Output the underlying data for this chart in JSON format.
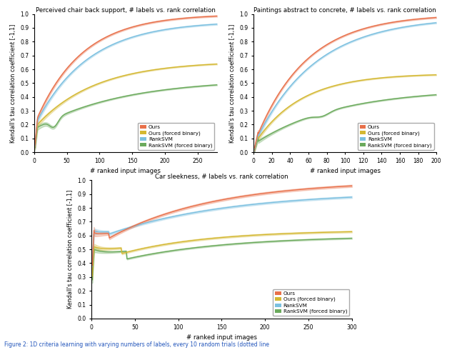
{
  "colors": {
    "ours": "#E8704A",
    "ours_binary": "#D4B832",
    "ranksvm": "#7BC0E0",
    "ranksvm_binary": "#6BAA5C"
  },
  "legend_labels": [
    "Ours",
    "Ours (forced binary)",
    "RankSVM",
    "RankSVM (forced binary)"
  ],
  "caption": "Figure 2: 1D criteria learning with varying numbers of labels, every 10 random trials (dotted line",
  "figure_bgcolor": "#ffffff",
  "plot1": {
    "title": "Perceived chair back support, # labels vs. rank correlation",
    "xlabel": "# ranked input images",
    "ylabel": "Kendall's tau correlation coefficient [-1,1]",
    "xlim": [
      0,
      280
    ],
    "ylim": [
      0,
      1.0
    ],
    "xticks": [
      0,
      50,
      100,
      150,
      200,
      250
    ],
    "yticks": [
      0.0,
      0.1,
      0.2,
      0.3,
      0.4,
      0.5,
      0.6,
      0.7,
      0.8,
      0.9,
      1.0
    ]
  },
  "plot2": {
    "title": "Paintings abstract to concrete, # labels vs. rank correlation",
    "xlabel": "# ranked input images",
    "ylabel": "Kendall's tau correlation coefficient [-1,1]",
    "xlim": [
      0,
      200
    ],
    "ylim": [
      0,
      1.0
    ],
    "xticks": [
      0,
      20,
      40,
      60,
      80,
      100,
      120,
      140,
      160,
      180,
      200
    ],
    "yticks": [
      0.0,
      0.1,
      0.2,
      0.3,
      0.4,
      0.5,
      0.6,
      0.7,
      0.8,
      0.9,
      1.0
    ]
  },
  "plot3": {
    "title": "Car sleekness, # labels vs. rank correlation",
    "xlabel": "# ranked input images",
    "ylabel": "Kendall's tau correlation coefficient [-1,1]",
    "xlim": [
      0,
      300
    ],
    "ylim": [
      0,
      1.0
    ],
    "xticks": [
      0,
      50,
      100,
      150,
      200,
      250,
      300
    ],
    "yticks": [
      0.0,
      0.1,
      0.2,
      0.3,
      0.4,
      0.5,
      0.6,
      0.7,
      0.8,
      0.9,
      1.0
    ]
  }
}
